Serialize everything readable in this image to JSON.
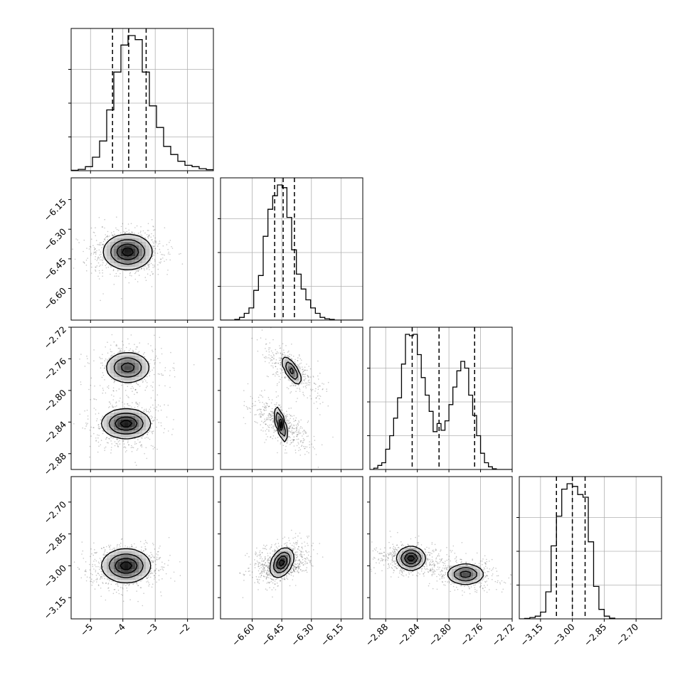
{
  "chart_data": {
    "type": "corner",
    "grid": true,
    "quantile_line_style": "dashed",
    "params": [
      {
        "range": [
          -5.6,
          -1.2
        ],
        "ticks": [
          -5,
          -4,
          -3,
          -2
        ],
        "tick_labels": [
          "−5",
          "−4",
          "−3",
          "−2"
        ],
        "quantiles": [
          -4.32,
          -3.82,
          -3.28
        ],
        "hist": {
          "bin_edges": [
            -5.6,
            -5.38,
            -5.16,
            -4.94,
            -4.72,
            -4.5,
            -4.28,
            -4.06,
            -3.84,
            -3.62,
            -3.4,
            -3.18,
            -2.96,
            -2.74,
            -2.52,
            -2.3,
            -2.08,
            -1.86,
            -1.64,
            -1.42,
            -1.2
          ],
          "counts": [
            0.3,
            1,
            3,
            10,
            22,
            45,
            73,
            93,
            100,
            97,
            73,
            48,
            32,
            18,
            12,
            7,
            4,
            3,
            1.5,
            0.8
          ]
        }
      },
      {
        "range": [
          -6.76,
          -6.04
        ],
        "ticks": [
          -6.6,
          -6.45,
          -6.3,
          -6.15
        ],
        "tick_labels": [
          "−6.60",
          "−6.45",
          "−6.30",
          "−6.15"
        ],
        "quantiles": [
          -6.486,
          -6.443,
          -6.386
        ],
        "hist": {
          "bin_edges": [
            -6.76,
            -6.736,
            -6.712,
            -6.688,
            -6.664,
            -6.64,
            -6.616,
            -6.592,
            -6.568,
            -6.544,
            -6.52,
            -6.496,
            -6.472,
            -6.448,
            -6.424,
            -6.4,
            -6.376,
            -6.352,
            -6.328,
            -6.304,
            -6.28,
            -6.256,
            -6.232,
            -6.208,
            -6.184,
            -6.16,
            -6.136,
            -6.112,
            -6.088,
            -6.064,
            -6.04
          ],
          "counts": [
            0,
            0,
            0,
            0.5,
            2,
            5,
            9,
            22,
            33,
            62,
            82,
            92,
            100,
            98,
            76,
            52,
            34,
            23,
            15,
            9,
            5,
            2,
            1,
            0.5,
            0,
            0,
            0,
            0,
            0,
            0
          ]
        }
      },
      {
        "range": [
          -2.9,
          -2.72
        ],
        "ticks": [
          -2.88,
          -2.84,
          -2.8,
          -2.76,
          -2.72
        ],
        "tick_labels": [
          "−2.88",
          "−2.84",
          "−2.80",
          "−2.76",
          "−2.72"
        ],
        "quantiles": [
          -2.8465,
          -2.8125,
          -2.7675
        ],
        "hist": {
          "bin_edges": [
            -2.9,
            -2.895,
            -2.89,
            -2.885,
            -2.88,
            -2.875,
            -2.87,
            -2.865,
            -2.86,
            -2.855,
            -2.85,
            -2.845,
            -2.84,
            -2.835,
            -2.83,
            -2.825,
            -2.82,
            -2.815,
            -2.81,
            -2.805,
            -2.8,
            -2.795,
            -2.79,
            -2.785,
            -2.78,
            -2.775,
            -2.77,
            -2.765,
            -2.76,
            -2.755,
            -2.75,
            -2.745,
            -2.74,
            -2.735,
            -2.73,
            -2.725,
            -2.72
          ],
          "counts": [
            0,
            1,
            3,
            5,
            15,
            25,
            38,
            53,
            78,
            100,
            99,
            100,
            85,
            68,
            55,
            43,
            28,
            34,
            29,
            36,
            48,
            61,
            73,
            80,
            75,
            55,
            40,
            25,
            12,
            5,
            2,
            0.5,
            0,
            0,
            0,
            0
          ]
        }
      },
      {
        "range": [
          -3.25,
          -2.58
        ],
        "ticks": [
          -3.15,
          -3.0,
          -2.85,
          -2.7
        ],
        "tick_labels": [
          "−3.15",
          "−3.00",
          "−2.85",
          "−2.70"
        ],
        "quantiles": [
          -3.075,
          -3.0,
          -2.94
        ],
        "hist": {
          "bin_edges": [
            -3.25,
            -3.225,
            -3.2,
            -3.175,
            -3.15,
            -3.125,
            -3.1,
            -3.075,
            -3.05,
            -3.025,
            -3.0,
            -2.975,
            -2.95,
            -2.925,
            -2.9,
            -2.875,
            -2.85,
            -2.825,
            -2.8,
            -2.775,
            -2.75,
            -2.725,
            -2.7,
            -2.675,
            -2.65,
            -2.625,
            -2.6,
            -2.575
          ],
          "counts": [
            0,
            0.3,
            1,
            2,
            5,
            20,
            54,
            76,
            96,
            100,
            98,
            92,
            90,
            57,
            24,
            7,
            2,
            0.5,
            0,
            0,
            0,
            0,
            0,
            0,
            0,
            0,
            0
          ]
        }
      }
    ],
    "pairs": [
      {
        "row": 1,
        "col": 0,
        "modes": [
          {
            "cx": -3.85,
            "cy": -6.415,
            "sx": 0.38,
            "sy": 0.045,
            "w": 1
          }
        ],
        "scatter_spread": [
          0.6,
          0.085
        ]
      },
      {
        "row": 2,
        "col": 0,
        "modes": [
          {
            "cx": -3.85,
            "cy": -2.771,
            "sx": 0.35,
            "sy": 0.01,
            "w": 0.8
          },
          {
            "cx": -3.9,
            "cy": -2.842,
            "sx": 0.38,
            "sy": 0.0095,
            "w": 1
          }
        ],
        "scatter_spread": [
          0.6,
          0.028
        ]
      },
      {
        "row": 2,
        "col": 1,
        "modes": [
          {
            "cx": -6.4,
            "cy": -2.775,
            "sx": 0.025,
            "sy": 0.009,
            "w": 0.8,
            "tilt": -0.7
          },
          {
            "cx": -6.455,
            "cy": -2.843,
            "sx": 0.016,
            "sy": 0.011,
            "w": 1,
            "tilt": -0.7
          }
        ],
        "scatter_spread": [
          0.08,
          0.028
        ]
      },
      {
        "row": 3,
        "col": 0,
        "modes": [
          {
            "cx": -3.9,
            "cy": -3.0,
            "sx": 0.38,
            "sy": 0.04,
            "w": 1
          }
        ],
        "scatter_spread": [
          0.6,
          0.075
        ]
      },
      {
        "row": 3,
        "col": 1,
        "modes": [
          {
            "cx": -6.45,
            "cy": -2.985,
            "sx": 0.03,
            "sy": 0.035,
            "w": 1,
            "tilt": 0.35
          }
        ],
        "scatter_spread": [
          0.075,
          0.07
        ]
      },
      {
        "row": 3,
        "col": 2,
        "modes": [
          {
            "cx": -2.848,
            "cy": -2.965,
            "sx": 0.009,
            "sy": 0.028,
            "w": 1
          },
          {
            "cx": -2.779,
            "cy": -3.04,
            "sx": 0.012,
            "sy": 0.025,
            "w": 0.8
          }
        ],
        "scatter_spread": [
          0.025,
          0.065
        ]
      }
    ]
  }
}
